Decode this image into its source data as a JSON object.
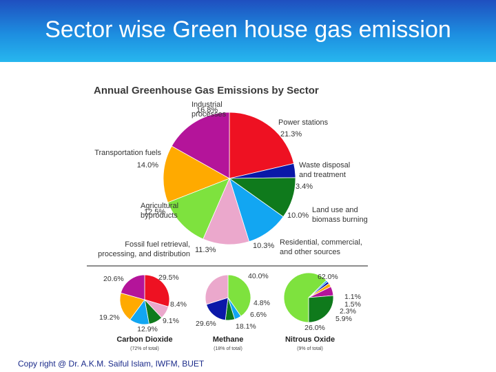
{
  "slide": {
    "title": "Sector wise Green house gas emission",
    "footer": "Copy right @ Dr. A.K.M. Saiful Islam, IWFM, BUET"
  },
  "chart_data": [
    {
      "type": "pie",
      "title": "Annual Greenhouse Gas Emissions by Sector",
      "slices": [
        {
          "label": "Power stations",
          "value": 21.3,
          "display": "21.3%",
          "color": "#ee1122"
        },
        {
          "label": "Waste disposal and treatment",
          "value": 3.4,
          "display": "3.4%",
          "color": "#0b18a8"
        },
        {
          "label": "Land use and biomass burning",
          "value": 10.0,
          "display": "10.0%",
          "color": "#0f7a1c"
        },
        {
          "label": "Residential, commercial, and other sources",
          "value": 10.3,
          "display": "10.3%",
          "color": "#12a6f2"
        },
        {
          "label": "Fossil fuel retrieval, processing, and distribution",
          "value": 11.3,
          "display": "11.3%",
          "color": "#eba8cc"
        },
        {
          "label": "Agricultural byproducts",
          "value": 12.5,
          "display": "12.5%",
          "color": "#7ee23e"
        },
        {
          "label": "Transportation fuels",
          "value": 14.0,
          "display": "14.0%",
          "color": "#ffaa00"
        },
        {
          "label": "Industrial processes",
          "value": 16.8,
          "display": "16.8%",
          "color": "#b4149a"
        }
      ]
    },
    {
      "type": "pie",
      "title": "Carbon Dioxide",
      "subtitle": "(72% of total)",
      "slices": [
        {
          "value": 29.5,
          "display": "29.5%",
          "color": "#ee1122"
        },
        {
          "value": 8.4,
          "display": "8.4%",
          "color": "#eba8cc"
        },
        {
          "value": 9.1,
          "display": "9.1%",
          "color": "#0f7a1c"
        },
        {
          "value": 12.9,
          "display": "12.9%",
          "color": "#12a6f2"
        },
        {
          "value": 19.2,
          "display": "19.2%",
          "color": "#ffaa00"
        },
        {
          "value": 20.6,
          "display": "20.6%",
          "color": "#b4149a"
        }
      ]
    },
    {
      "type": "pie",
      "title": "Methane",
      "subtitle": "(18% of total)",
      "slices": [
        {
          "value": 40.0,
          "display": "40.0%",
          "color": "#7ee23e"
        },
        {
          "value": 4.8,
          "display": "4.8%",
          "color": "#12a6f2"
        },
        {
          "value": 6.6,
          "display": "6.6%",
          "color": "#0f7a1c"
        },
        {
          "value": 18.1,
          "display": "18.1%",
          "color": "#0b18a8"
        },
        {
          "value": 29.6,
          "display": "29.6%",
          "color": "#eba8cc"
        }
      ]
    },
    {
      "type": "pie",
      "title": "Nitrous Oxide",
      "subtitle": "(9% of total)",
      "slices": [
        {
          "value": 62.0,
          "display": "62.0%",
          "color": "#7ee23e"
        },
        {
          "value": 1.1,
          "display": "1.1%",
          "color": "#12a6f2"
        },
        {
          "value": 1.5,
          "display": "1.5%",
          "color": "#0b18a8"
        },
        {
          "value": 2.3,
          "display": "2.3%",
          "color": "#ffaa00"
        },
        {
          "value": 5.9,
          "display": "5.9%",
          "color": "#b4149a"
        },
        {
          "value": 26.0,
          "display": "26.0%",
          "color": "#0f7a1c"
        }
      ]
    }
  ]
}
